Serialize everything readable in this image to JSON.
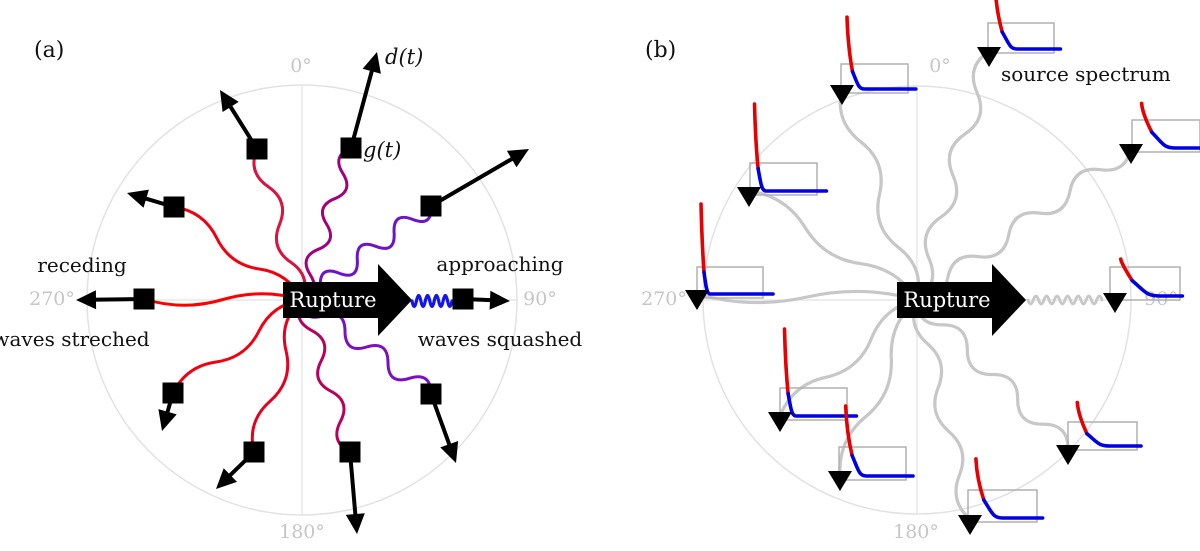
{
  "figure": {
    "panel_a": {
      "tag": "(a)",
      "rupture_label": "Rupture",
      "deg_top": "0°",
      "deg_right": "90°",
      "deg_bottom": "180°",
      "deg_left": "270°",
      "receding": "receding",
      "waves_stretched": "waves streched",
      "approaching": "approaching",
      "waves_squashed": "waves squashed",
      "d_label": "d(t)",
      "g_label": "g(t)"
    },
    "panel_b": {
      "tag": "(b)",
      "rupture_label": "Rupture",
      "deg_top": "0°",
      "deg_right": "90°",
      "deg_bottom": "180°",
      "deg_left": "270°",
      "source_spectrum": "source spectrum"
    },
    "colors": {
      "station_black": "#000000",
      "grid_gray": "#e2e2e2",
      "degree_label_gray": "#c6c6c6",
      "panel_b_wave_gray": "#c7c7c7",
      "spectrum_box_gray": "#b0b0b0",
      "spectrum_red": "#e80000",
      "spectrum_blue": "#0000e6",
      "wave_blue": "#1414f0",
      "panel_a_wave_colors": [
        "#a1007e",
        "#d81440",
        "#f2000e",
        "#ff0000",
        "#f2000e",
        "#e60020",
        "#b8005c",
        "#7a10c0",
        "#1414f0",
        "#6d14c8"
      ]
    }
  }
}
